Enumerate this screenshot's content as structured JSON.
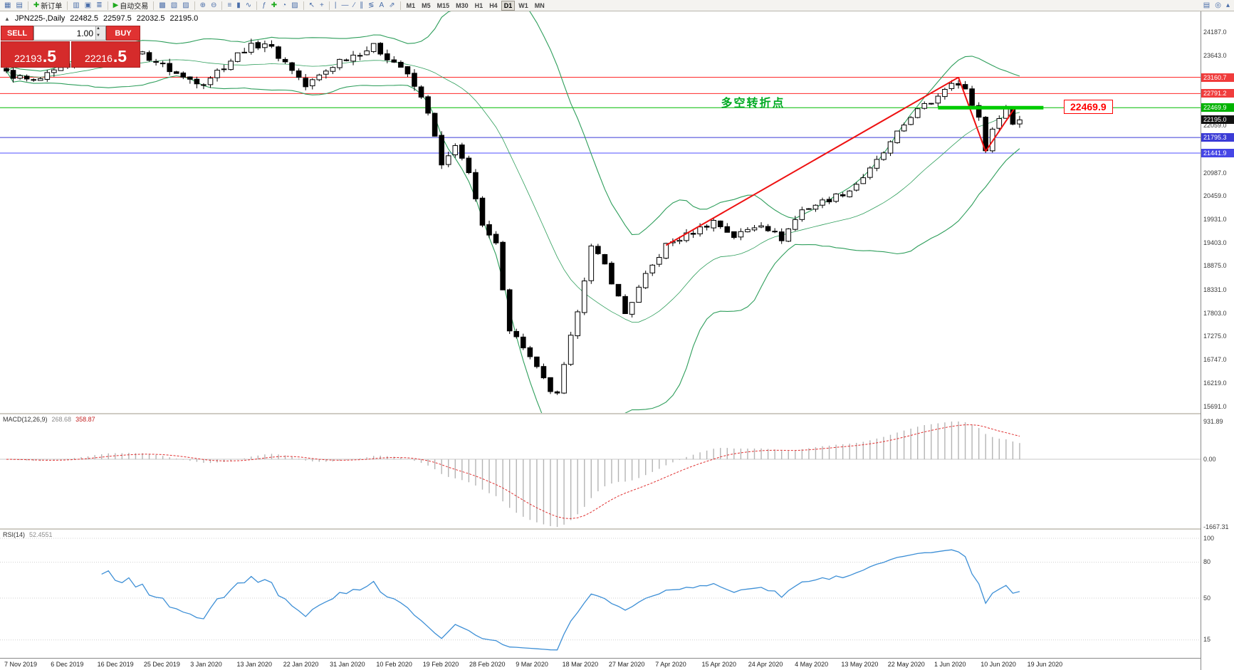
{
  "toolbar": {
    "groups": [
      {
        "items": [
          {
            "name": "new-chart-button",
            "glyph": "▦"
          },
          {
            "name": "chart-profiles-button",
            "glyph": "▤"
          }
        ]
      },
      {
        "items": [
          {
            "name": "new-order-button",
            "glyph": "✚",
            "glyph_color": "#1faa1f",
            "label": "新订单"
          }
        ]
      },
      {
        "items": [
          {
            "name": "market-watch-button",
            "glyph": "▥"
          },
          {
            "name": "data-window-button",
            "glyph": "▣"
          },
          {
            "name": "navigator-button",
            "glyph": "≣"
          }
        ]
      },
      {
        "items": [
          {
            "name": "auto-trading-button",
            "glyph": "▶",
            "glyph_color": "#1faa1f",
            "label": "自动交易"
          }
        ]
      },
      {
        "items": [
          {
            "name": "tile-windows-button",
            "glyph": "▩"
          },
          {
            "name": "cascade-windows-button",
            "glyph": "▧"
          },
          {
            "name": "arrange-windows-button",
            "glyph": "▨"
          }
        ]
      },
      {
        "items": [
          {
            "name": "zoom-in-button",
            "glyph": "⊕"
          },
          {
            "name": "zoom-out-button",
            "glyph": "⊖"
          }
        ]
      },
      {
        "items": [
          {
            "name": "bar-chart-button",
            "glyph": "≡"
          },
          {
            "name": "candlestick-chart-button",
            "glyph": "▮"
          },
          {
            "name": "line-chart-button",
            "glyph": "∿"
          }
        ]
      },
      {
        "items": [
          {
            "name": "indicators-button",
            "glyph": "ƒ"
          },
          {
            "name": "add-indicator-button",
            "glyph": "✚",
            "glyph_color": "#1faa1f"
          },
          {
            "name": "periods-button",
            "glyph": "◔"
          },
          {
            "name": "templates-button",
            "glyph": "▨"
          }
        ]
      },
      {
        "items": [
          {
            "name": "cursor-button",
            "glyph": "↖"
          },
          {
            "name": "crosshair-button",
            "glyph": "+"
          }
        ]
      },
      {
        "items": [
          {
            "name": "vertical-line-button",
            "glyph": "|"
          },
          {
            "name": "horizontal-line-button",
            "glyph": "―"
          },
          {
            "name": "trendline-button",
            "glyph": "∕"
          },
          {
            "name": "equidistant-channel-button",
            "glyph": "∥"
          },
          {
            "name": "fibonacci-button",
            "glyph": "≶"
          },
          {
            "name": "text-label-button",
            "glyph": "A"
          },
          {
            "name": "arrow-objects-button",
            "glyph": "⇗"
          }
        ]
      }
    ],
    "timeframes": [
      {
        "label": "M1"
      },
      {
        "label": "M5"
      },
      {
        "label": "M15"
      },
      {
        "label": "M30"
      },
      {
        "label": "H1"
      },
      {
        "label": "H4"
      },
      {
        "label": "D1",
        "active": true
      },
      {
        "label": "W1"
      },
      {
        "label": "MN"
      }
    ],
    "right_items": [
      {
        "name": "print-button",
        "glyph": "▤"
      },
      {
        "name": "search-button",
        "glyph": "◎"
      },
      {
        "name": "scroll-up-button",
        "glyph": "▴"
      }
    ]
  },
  "trade_panel": {
    "symbol_line": {
      "icon_glyph": "▲",
      "symbol": "JPN225-,Daily",
      "open": "22482.5",
      "high": "22597.5",
      "low": "22032.5",
      "close": "22195.0"
    },
    "sell_label": "SELL",
    "buy_label": "BUY",
    "volume": "1.00",
    "spinner_up_glyph": "▲",
    "spinner_down_glyph": "▼",
    "sell_price": {
      "main": "22193",
      "sup": ".5"
    },
    "buy_price": {
      "main": "22216",
      "sup": ".5"
    }
  },
  "chart_data": {
    "type": "candlestick",
    "symbol": "JPN225-",
    "timeframe": "Daily",
    "bars_count": 150,
    "bar_step": 9.55,
    "bar_width": 6.6,
    "up_color": "#ffffff",
    "down_color": "#000000",
    "wick_color": "#000000",
    "close_anchors": [
      [
        0,
        23250
      ],
      [
        4,
        23050
      ],
      [
        9,
        23400
      ],
      [
        14,
        23800
      ],
      [
        20,
        23700
      ],
      [
        26,
        23150
      ],
      [
        29,
        23050
      ],
      [
        35,
        23800
      ],
      [
        38,
        23950
      ],
      [
        42,
        23350
      ],
      [
        44,
        22950
      ],
      [
        49,
        23550
      ],
      [
        54,
        23850
      ],
      [
        58,
        23400
      ],
      [
        60,
        22950
      ],
      [
        62,
        22400
      ],
      [
        64,
        21150
      ],
      [
        66,
        21550
      ],
      [
        68,
        21050
      ],
      [
        70,
        19750
      ],
      [
        72,
        19350
      ],
      [
        74,
        17450
      ],
      [
        76,
        17050
      ],
      [
        78,
        16550
      ],
      [
        80,
        16050
      ],
      [
        81,
        15950
      ],
      [
        84,
        17900
      ],
      [
        86,
        19300
      ],
      [
        88,
        18900
      ],
      [
        91,
        17800
      ],
      [
        94,
        18650
      ],
      [
        97,
        19350
      ],
      [
        101,
        19650
      ],
      [
        104,
        19900
      ],
      [
        107,
        19550
      ],
      [
        111,
        19850
      ],
      [
        114,
        19500
      ],
      [
        117,
        20150
      ],
      [
        121,
        20400
      ],
      [
        124,
        20600
      ],
      [
        127,
        21050
      ],
      [
        130,
        21650
      ],
      [
        133,
        22300
      ],
      [
        136,
        22600
      ],
      [
        139,
        23100
      ],
      [
        141,
        22850
      ],
      [
        143,
        22250
      ],
      [
        144,
        21550
      ],
      [
        146,
        22300
      ],
      [
        147,
        22450
      ],
      [
        148,
        22100
      ],
      [
        149,
        22195
      ]
    ],
    "bollinger": {
      "period": 20,
      "deviation": 2,
      "color": "#2e9e5b"
    },
    "price_axis": {
      "max": 24187.0,
      "min": 15691.0,
      "labels": [
        "24187.0",
        "23643.0",
        "22059.0",
        "20987.0",
        "20459.0",
        "19931.0",
        "19403.0",
        "18875.0",
        "18331.0",
        "17803.0",
        "17275.0",
        "16747.0",
        "16219.0",
        "15691.0"
      ]
    },
    "hlines": [
      {
        "value": 23160.7,
        "label": "23160.7",
        "color": "#ff2a2a",
        "badge_bg": "#f03c3c"
      },
      {
        "value": 22791.2,
        "label": "22791.2",
        "color": "#ff2a2a",
        "badge_bg": "#f03c3c"
      },
      {
        "value": 22469.9,
        "label": "22469.9",
        "color": "#00bb00",
        "badge_bg": "#00b300"
      },
      {
        "value": 21795.3,
        "label": "21795.3",
        "color": "#3c3cd6",
        "badge_bg": "#3c3cd6"
      },
      {
        "value": 21441.9,
        "label": "21441.9",
        "color": "#5050ff",
        "badge_bg": "#4646e6"
      }
    ],
    "current_price": {
      "value": 22195.0,
      "label": "22195.0",
      "badge_bg": "#111111"
    },
    "green_segment": {
      "from_bar": 137,
      "to_bar": 152.5,
      "value": 22469.9,
      "color": "#00cc00",
      "width": 5
    },
    "trend_lines": [
      {
        "from": [
          97,
          19350
        ],
        "to": [
          140,
          23160
        ],
        "color": "#ee1111",
        "width": 2
      },
      {
        "from": [
          140,
          23160
        ],
        "to": [
          144,
          21480
        ],
        "color": "#ee1111",
        "width": 2
      },
      {
        "from": [
          144,
          21480
        ],
        "to": [
          148.3,
          22470
        ],
        "color": "#ee1111",
        "width": 2
      }
    ],
    "annotation": {
      "text": "多空转折点",
      "bar": 114.5,
      "value": 22640,
      "color": "#00aa22"
    },
    "callout": {
      "text": "22469.9",
      "bar": 155.5,
      "value": 22469.9,
      "color": "#ff0000"
    },
    "macd": {
      "name": "MACD(12,26,9)",
      "value_main": "268.68",
      "value_signal": "358.87",
      "params": [
        12,
        26,
        9
      ],
      "axis_labels": [
        "931.89",
        "0.00",
        "-1667.31"
      ],
      "max": 931.89,
      "min": -1667.31,
      "histogram_color": "#b4b4b4",
      "signal_color": "#e03030"
    },
    "rsi": {
      "name": "RSI(14)",
      "value": "52.4551",
      "period": 14,
      "current": 52.4551,
      "axis_labels": [
        "100",
        "80",
        "50",
        "15"
      ],
      "max": 100,
      "min": 0,
      "line_color": "#3d8fd6",
      "level_color": "#d0d0d0"
    },
    "time_axis": {
      "labels": [
        "7 Nov 2019",
        "6 Dec 2019",
        "16 Dec 2019",
        "25 Dec 2019",
        "3 Jan 2020",
        "13 Jan 2020",
        "22 Jan 2020",
        "31 Jan 2020",
        "10 Feb 2020",
        "19 Feb 2020",
        "28 Feb 2020",
        "9 Mar 2020",
        "18 Mar 2020",
        "27 Mar 2020",
        "7 Apr 2020",
        "15 Apr 2020",
        "24 Apr 2020",
        "4 May 2020",
        "13 May 2020",
        "22 May 2020",
        "1 Jun 2020",
        "10 Jun 2020",
        "19 Jun 2020"
      ]
    }
  }
}
